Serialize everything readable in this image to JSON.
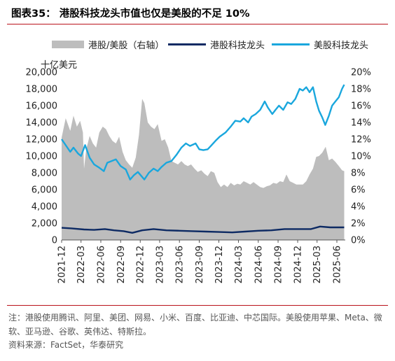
{
  "header": {
    "title": "图表35：  港股科技龙头市值也仅是美股的不足 10%"
  },
  "legend": {
    "area_label": "港股/美股（右轴）",
    "hk_label": "港股科技龙头",
    "us_label": "美股科技龙头"
  },
  "unit_label": "十亿美元",
  "footer": {
    "note": "注：港股使用腾讯、阿里、美团、网易、小米、百度、比亚迪、中芯国际。美股使用苹果、Meta、微软、亚马逊、谷歌、英伟达、特斯拉。",
    "source": "资料来源：FactSet，华泰研究"
  },
  "colors": {
    "area": "#bdbdbd",
    "hk_line": "#0d2a63",
    "us_line": "#1aa7dd",
    "rule": "#b9121b"
  },
  "chart_data": {
    "type": "line",
    "x_ticks": [
      "2021-12",
      "2022-03",
      "2022-06",
      "2022-09",
      "2022-12",
      "2023-03",
      "2023-06",
      "2023-09",
      "2023-12",
      "2024-03",
      "2024-06",
      "2024-09",
      "2024-12",
      "2025-03",
      "2025-06"
    ],
    "x_range": [
      "2021-12-01",
      "2025-07-10"
    ],
    "y_left": {
      "label": "十亿美元",
      "min": 0,
      "max": 20000,
      "ticks": [
        "0",
        "2,000",
        "4,000",
        "6,000",
        "8,000",
        "10,000",
        "12,000",
        "14,000",
        "16,000",
        "18,000",
        "20,000"
      ]
    },
    "y_right": {
      "min": 0,
      "max": 20,
      "ticks": [
        "0%",
        "2%",
        "4%",
        "6%",
        "8%",
        "10%",
        "12%",
        "14%",
        "16%",
        "18%",
        "20%"
      ]
    },
    "series": [
      {
        "name": "港股/美股（右轴）",
        "type": "area",
        "axis": "right",
        "unit": "%",
        "x": [
          "2021-12-01",
          "2021-12-20",
          "2022-01-10",
          "2022-01-25",
          "2022-02-10",
          "2022-02-25",
          "2022-03-10",
          "2022-03-15",
          "2022-03-25",
          "2022-04-10",
          "2022-04-25",
          "2022-05-10",
          "2022-05-25",
          "2022-06-10",
          "2022-06-25",
          "2022-07-10",
          "2022-07-25",
          "2022-08-10",
          "2022-08-25",
          "2022-09-10",
          "2022-09-25",
          "2022-10-10",
          "2022-10-25",
          "2022-11-10",
          "2022-11-25",
          "2022-12-10",
          "2022-12-20",
          "2023-01-05",
          "2023-01-20",
          "2023-02-05",
          "2023-02-20",
          "2023-03-10",
          "2023-03-25",
          "2023-04-10",
          "2023-04-25",
          "2023-05-10",
          "2023-05-25",
          "2023-06-10",
          "2023-06-25",
          "2023-07-10",
          "2023-07-25",
          "2023-08-10",
          "2023-08-25",
          "2023-09-10",
          "2023-09-25",
          "2023-10-10",
          "2023-10-25",
          "2023-11-10",
          "2023-11-25",
          "2023-12-10",
          "2023-12-25",
          "2024-01-10",
          "2024-01-25",
          "2024-02-10",
          "2024-02-25",
          "2024-03-10",
          "2024-03-25",
          "2024-04-10",
          "2024-04-25",
          "2024-05-10",
          "2024-05-25",
          "2024-06-10",
          "2024-06-25",
          "2024-07-10",
          "2024-07-25",
          "2024-08-10",
          "2024-08-25",
          "2024-09-10",
          "2024-09-25",
          "2024-10-10",
          "2024-10-25",
          "2024-11-10",
          "2024-11-25",
          "2024-12-10",
          "2024-12-25",
          "2025-01-10",
          "2025-01-25",
          "2025-02-10",
          "2025-02-25",
          "2025-03-10",
          "2025-03-25",
          "2025-04-10",
          "2025-04-25",
          "2025-05-10",
          "2025-05-25",
          "2025-06-10",
          "2025-06-25",
          "2025-07-05"
        ],
        "values": [
          12.2,
          14.5,
          13.0,
          14.8,
          13.5,
          14.2,
          12.8,
          8.5,
          10.8,
          12.4,
          11.5,
          11.0,
          12.8,
          13.5,
          13.2,
          12.4,
          11.8,
          11.5,
          12.3,
          10.5,
          9.5,
          9.0,
          8.6,
          9.8,
          12.5,
          16.8,
          16.3,
          14.0,
          13.5,
          13.2,
          13.8,
          11.8,
          12.0,
          11.0,
          9.4,
          9.2,
          9.0,
          9.4,
          9.0,
          8.8,
          9.0,
          8.5,
          8.1,
          8.3,
          7.9,
          7.6,
          8.2,
          8.0,
          6.9,
          6.3,
          6.6,
          6.3,
          6.8,
          6.5,
          6.7,
          6.6,
          7.0,
          6.8,
          6.6,
          6.9,
          6.6,
          6.3,
          6.2,
          6.4,
          6.5,
          6.8,
          6.7,
          7.0,
          6.9,
          7.8,
          7.0,
          6.8,
          6.6,
          6.6,
          6.6,
          7.0,
          7.8,
          8.5,
          9.9,
          10.0,
          10.4,
          11.1,
          9.5,
          9.7,
          9.3,
          8.8,
          8.3,
          8.2
        ]
      },
      {
        "name": "港股科技龙头",
        "type": "line",
        "axis": "left",
        "x": [
          "2021-12-01",
          "2022-01-15",
          "2022-03-15",
          "2022-05-01",
          "2022-06-20",
          "2022-08-01",
          "2022-09-15",
          "2022-10-25",
          "2022-12-10",
          "2023-02-01",
          "2023-04-01",
          "2023-06-01",
          "2023-08-01",
          "2023-10-01",
          "2023-12-01",
          "2024-02-01",
          "2024-04-01",
          "2024-06-01",
          "2024-08-01",
          "2024-10-01",
          "2024-12-01",
          "2025-02-01",
          "2025-03-15",
          "2025-05-01",
          "2025-07-05"
        ],
        "values": [
          1450,
          1380,
          1250,
          1200,
          1300,
          1150,
          1050,
          850,
          1150,
          1300,
          1150,
          1100,
          1050,
          1000,
          950,
          900,
          1000,
          1100,
          1150,
          1300,
          1300,
          1300,
          1600,
          1500,
          1500
        ]
      },
      {
        "name": "美股科技龙头",
        "type": "line",
        "axis": "left",
        "x": [
          "2021-12-01",
          "2022-01-10",
          "2022-01-25",
          "2022-02-15",
          "2022-03-01",
          "2022-03-20",
          "2022-04-10",
          "2022-05-01",
          "2022-05-25",
          "2022-06-15",
          "2022-07-01",
          "2022-08-10",
          "2022-09-01",
          "2022-09-25",
          "2022-10-15",
          "2022-11-01",
          "2022-11-20",
          "2022-12-20",
          "2023-01-10",
          "2023-02-01",
          "2023-02-20",
          "2023-03-10",
          "2023-04-01",
          "2023-04-25",
          "2023-05-20",
          "2023-06-10",
          "2023-07-01",
          "2023-07-20",
          "2023-08-15",
          "2023-09-01",
          "2023-09-20",
          "2023-10-10",
          "2023-10-25",
          "2023-11-15",
          "2023-12-05",
          "2024-01-01",
          "2024-01-25",
          "2024-02-15",
          "2024-03-10",
          "2024-03-25",
          "2024-04-15",
          "2024-05-01",
          "2024-05-20",
          "2024-06-10",
          "2024-07-01",
          "2024-07-15",
          "2024-08-05",
          "2024-08-20",
          "2024-09-05",
          "2024-09-25",
          "2024-10-15",
          "2024-11-01",
          "2024-11-20",
          "2024-12-10",
          "2024-12-25",
          "2025-01-10",
          "2025-01-25",
          "2025-02-10",
          "2025-02-25",
          "2025-03-10",
          "2025-03-25",
          "2025-04-08",
          "2025-04-25",
          "2025-05-10",
          "2025-05-25",
          "2025-06-10",
          "2025-06-25",
          "2025-07-05"
        ],
        "values": [
          12000,
          10500,
          11000,
          10300,
          10000,
          11300,
          9800,
          9000,
          8600,
          8200,
          9200,
          9600,
          8800,
          8400,
          7200,
          7700,
          8100,
          7200,
          8000,
          8500,
          8200,
          8700,
          9200,
          9400,
          10200,
          11000,
          11500,
          11200,
          11500,
          10800,
          10700,
          10800,
          11200,
          11800,
          12300,
          12800,
          13500,
          14200,
          14100,
          14500,
          14000,
          14700,
          15000,
          15500,
          16500,
          15800,
          15000,
          15500,
          16000,
          15500,
          16400,
          16200,
          16800,
          18000,
          17800,
          18200,
          17600,
          18200,
          16500,
          15400,
          14600,
          13700,
          14800,
          16000,
          16500,
          17000,
          18000,
          18500
        ]
      }
    ]
  }
}
